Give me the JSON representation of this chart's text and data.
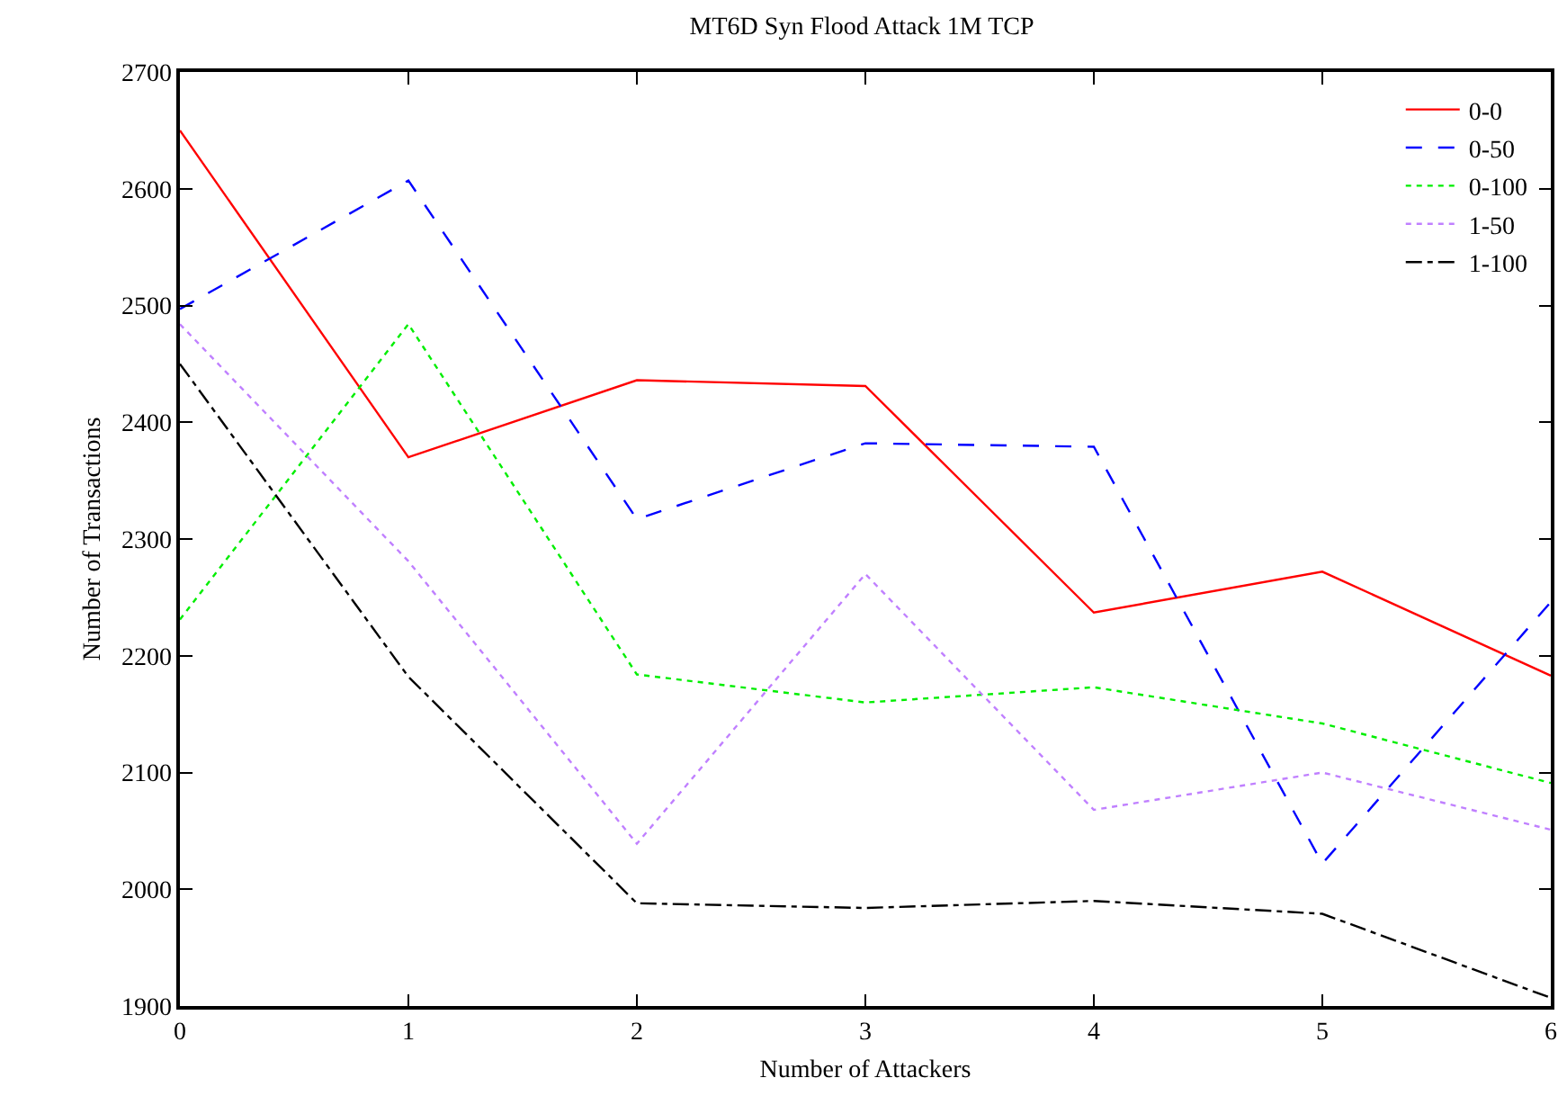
{
  "chart_data": {
    "type": "line",
    "title": "MT6D Syn Flood Attack 1M TCP",
    "xlabel": "Number of Attackers",
    "ylabel": "Number of Transactions",
    "x": [
      0,
      1,
      2,
      3,
      4,
      5,
      6
    ],
    "series": [
      {
        "name": "0-0",
        "color": "#ff0000",
        "line_style": "solid",
        "values": [
          2650,
          2370,
          2436,
          2431,
          2237,
          2272,
          2183
        ]
      },
      {
        "name": "0-50",
        "color": "#0000ff",
        "line_style": "dashed",
        "values": [
          2497,
          2607,
          2317,
          2382,
          2379,
          2022,
          2246
        ]
      },
      {
        "name": "0-100",
        "color": "#00ee00",
        "line_style": "dotted",
        "values": [
          2231,
          2484,
          2184,
          2160,
          2173,
          2142,
          2091
        ]
      },
      {
        "name": "1-50",
        "color": "#c080ff",
        "line_style": "dotted",
        "values": [
          2484,
          2281,
          2039,
          2270,
          2068,
          2100,
          2051
        ]
      },
      {
        "name": "1-100",
        "color": "#000000",
        "line_style": "dashdot",
        "values": [
          2450,
          2182,
          1988,
          1984,
          1990,
          1979,
          1907
        ]
      }
    ],
    "xlim": [
      0,
      6
    ],
    "xticks": [
      0,
      1,
      2,
      3,
      4,
      5,
      6
    ],
    "ylim": [
      1900,
      2700
    ],
    "yticks": [
      1900,
      2000,
      2100,
      2200,
      2300,
      2400,
      2500,
      2600,
      2700
    ],
    "legend": "top right",
    "marker": "none"
  }
}
